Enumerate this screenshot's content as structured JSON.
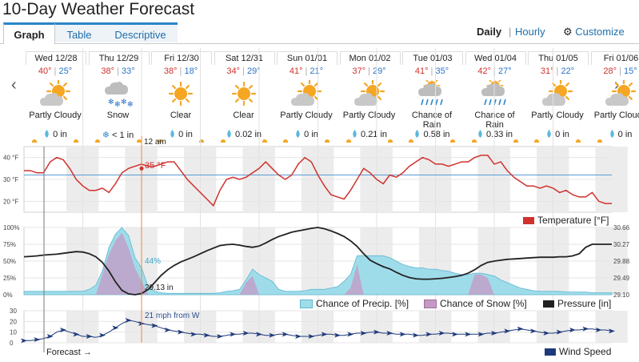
{
  "page_title": "10-Day Weather Forecast",
  "tabs": [
    {
      "label": "Graph",
      "active": true
    },
    {
      "label": "Table",
      "active": false
    },
    {
      "label": "Descriptive",
      "active": false
    }
  ],
  "view_toggle": {
    "daily": "Daily",
    "divider": "|",
    "hourly": "Hourly"
  },
  "customize_label": "Customize",
  "nav": {
    "prev": "‹",
    "next": "›"
  },
  "days": [
    {
      "label": "Wed 12/28",
      "hi": "40°",
      "lo": "25°",
      "icon": "partly-cloudy-icon",
      "condition": "Partly Cloudy",
      "precip": "0 in",
      "precip_icon": "rain-drop-icon"
    },
    {
      "label": "Thu 12/29",
      "hi": "38°",
      "lo": "33°",
      "icon": "snow-icon",
      "condition": "Snow",
      "precip": "< 1 in",
      "precip_icon": "snowflake-icon"
    },
    {
      "label": "Fri 12/30",
      "hi": "38°",
      "lo": "18°",
      "icon": "sun-icon",
      "condition": "Clear",
      "precip": "0 in",
      "precip_icon": "rain-drop-icon"
    },
    {
      "label": "Sat 12/31",
      "hi": "34°",
      "lo": "29°",
      "icon": "sun-icon",
      "condition": "Clear",
      "precip": "0.02 in",
      "precip_icon": "rain-drop-icon"
    },
    {
      "label": "Sun 01/01",
      "hi": "41°",
      "lo": "21°",
      "icon": "partly-cloudy-icon",
      "condition": "Partly Cloudy",
      "precip": "0 in",
      "precip_icon": "rain-drop-icon"
    },
    {
      "label": "Mon 01/02",
      "hi": "37°",
      "lo": "29°",
      "icon": "partly-cloudy-icon",
      "condition": "Partly Cloudy",
      "precip": "0.21 in",
      "precip_icon": "rain-drop-icon"
    },
    {
      "label": "Tue 01/03",
      "hi": "41°",
      "lo": "35°",
      "icon": "rain-icon",
      "condition": "Chance of Rain",
      "precip": "0.58 in",
      "precip_icon": "rain-drop-icon"
    },
    {
      "label": "Wed 01/04",
      "hi": "42°",
      "lo": "27°",
      "icon": "rain-icon",
      "condition": "Chance of Rain",
      "precip": "0.33 in",
      "precip_icon": "rain-drop-icon"
    },
    {
      "label": "Thu 01/05",
      "hi": "31°",
      "lo": "22°",
      "icon": "partly-cloudy-icon",
      "condition": "Partly Cloudy",
      "precip": "0 in",
      "precip_icon": "rain-drop-icon"
    },
    {
      "label": "Fri 01/06",
      "hi": "28°",
      "lo": "15°",
      "icon": "partly-cloudy-icon",
      "condition": "Partly Cloudy",
      "precip": "0 in",
      "precip_icon": "rain-drop-icon"
    }
  ],
  "hover": {
    "time": "12 am",
    "temp": "35 °F",
    "precip_pct": "44%",
    "pressure": "29.13 in",
    "wind": "21 mph from W"
  },
  "forecast_label": "Forecast →",
  "colors": {
    "temp": "#d0312d",
    "precip": "#9fdcea",
    "snow": "#c49ac4",
    "pressure": "#222222",
    "wind": "#1e3a7a",
    "freeze": "#5b9bd5",
    "hover_line": "#f08a3c",
    "accent": "#2a86c8"
  },
  "chart_data": [
    {
      "type": "line",
      "name": "temperature",
      "legend": "Temperature [°F]",
      "y_ticks": [
        "40 °F",
        "30 °F",
        "20 °F"
      ],
      "ylim": [
        15,
        45
      ],
      "x_days": 10,
      "y": [
        34,
        34,
        33,
        33,
        38,
        40,
        39,
        35,
        30,
        27,
        25,
        25,
        26,
        24,
        28,
        33,
        35,
        36,
        37,
        36,
        36,
        37,
        38,
        38,
        34,
        30,
        27,
        24,
        21,
        18,
        25,
        30,
        31,
        30,
        31,
        33,
        35,
        38,
        35,
        32,
        30,
        32,
        37,
        40,
        38,
        32,
        27,
        23,
        22,
        21,
        25,
        30,
        35,
        33,
        30,
        28,
        32,
        31,
        33,
        36,
        38,
        40,
        39,
        37,
        37,
        36,
        37,
        38,
        38,
        40,
        41,
        41,
        37,
        38,
        34,
        31,
        29,
        27,
        27,
        26,
        27,
        26,
        24,
        25,
        23,
        22,
        22,
        24,
        20,
        19,
        19
      ],
      "freeze_line": 32
    },
    {
      "type": "area",
      "name": "precip_pressure",
      "legends": [
        "Chance of Precip. [%]",
        "Chance of Snow [%]",
        "Pressure [in]"
      ],
      "y_left_ticks": [
        "100%",
        "75%",
        "50%",
        "25%",
        "0%"
      ],
      "y_right_ticks": [
        "30.66",
        "30.27",
        "29.88",
        "29.49",
        "29.10"
      ],
      "precip_pct": [
        5,
        5,
        5,
        5,
        5,
        5,
        5,
        5,
        5,
        5,
        8,
        14,
        35,
        70,
        90,
        100,
        88,
        55,
        40,
        12,
        5,
        3,
        2,
        2,
        2,
        2,
        2,
        2,
        2,
        2,
        3,
        5,
        6,
        8,
        22,
        38,
        30,
        25,
        20,
        8,
        5,
        5,
        5,
        6,
        8,
        8,
        8,
        10,
        12,
        20,
        30,
        58,
        58,
        58,
        58,
        58,
        55,
        50,
        45,
        42,
        40,
        40,
        38,
        38,
        36,
        35,
        32,
        30,
        30,
        32,
        32,
        30,
        28,
        22,
        18,
        14,
        10,
        8,
        6,
        5,
        5,
        5,
        5,
        4,
        4,
        4,
        4,
        3,
        3,
        3,
        3
      ],
      "snow_pct": [
        0,
        0,
        0,
        0,
        0,
        0,
        0,
        0,
        0,
        0,
        0,
        0,
        30,
        60,
        80,
        92,
        70,
        40,
        20,
        0,
        0,
        0,
        0,
        0,
        0,
        0,
        0,
        0,
        0,
        0,
        0,
        0,
        0,
        0,
        18,
        28,
        0,
        0,
        0,
        0,
        0,
        0,
        0,
        0,
        0,
        0,
        0,
        0,
        0,
        0,
        10,
        45,
        0,
        0,
        0,
        0,
        0,
        0,
        0,
        0,
        0,
        0,
        0,
        0,
        0,
        0,
        0,
        0,
        0,
        30,
        30,
        25,
        0,
        0,
        0,
        0,
        0,
        0,
        0,
        0,
        0,
        0,
        0,
        0,
        0,
        0,
        0,
        0,
        0,
        0,
        0
      ],
      "pressure_in": [
        29.98,
        29.99,
        30.0,
        30.02,
        30.03,
        30.04,
        30.06,
        30.08,
        30.1,
        30.09,
        30.05,
        29.98,
        29.85,
        29.65,
        29.4,
        29.2,
        29.12,
        29.1,
        29.13,
        29.22,
        29.38,
        29.55,
        29.68,
        29.78,
        29.86,
        29.92,
        29.98,
        30.05,
        30.12,
        30.18,
        30.24,
        30.26,
        30.27,
        30.25,
        30.22,
        30.2,
        30.23,
        30.3,
        30.38,
        30.45,
        30.5,
        30.55,
        30.58,
        30.61,
        30.64,
        30.66,
        30.63,
        30.58,
        30.52,
        30.45,
        30.35,
        30.22,
        30.05,
        29.9,
        29.82,
        29.75,
        29.7,
        29.62,
        29.55,
        29.5,
        29.47,
        29.46,
        29.46,
        29.47,
        29.48,
        29.5,
        29.52,
        29.55,
        29.6,
        29.68,
        29.78,
        29.85,
        29.88,
        29.9,
        29.92,
        29.93,
        29.94,
        29.95,
        29.96,
        29.97,
        29.97,
        29.97,
        29.98,
        29.98,
        30.0,
        30.05,
        30.2,
        30.27,
        30.27,
        30.27,
        30.27
      ],
      "ylim_pct": [
        0,
        100
      ],
      "ylim_pressure": [
        29.1,
        30.66
      ]
    },
    {
      "type": "line",
      "name": "wind",
      "legend": "Wind Speed",
      "y_ticks": [
        "30",
        "20",
        "10",
        "0"
      ],
      "ylim": [
        0,
        30
      ],
      "y": [
        2,
        2,
        3,
        4,
        6,
        10,
        12,
        10,
        8,
        6,
        6,
        5,
        7,
        10,
        14,
        18,
        21,
        20,
        18,
        17,
        16,
        14,
        12,
        11,
        10,
        9,
        8,
        8,
        7,
        6,
        6,
        7,
        8,
        8,
        9,
        9,
        8,
        7,
        7,
        8,
        8,
        7,
        6,
        6,
        6,
        7,
        8,
        8,
        7,
        7,
        8,
        9,
        9,
        10,
        10,
        9,
        9,
        8,
        8,
        8,
        7,
        7,
        8,
        8,
        9,
        9,
        8,
        8,
        8,
        8,
        8,
        9,
        9,
        10,
        11,
        12,
        13,
        12,
        11,
        10,
        9,
        9,
        10,
        11,
        12,
        12,
        13,
        13,
        12,
        12,
        11
      ]
    }
  ]
}
